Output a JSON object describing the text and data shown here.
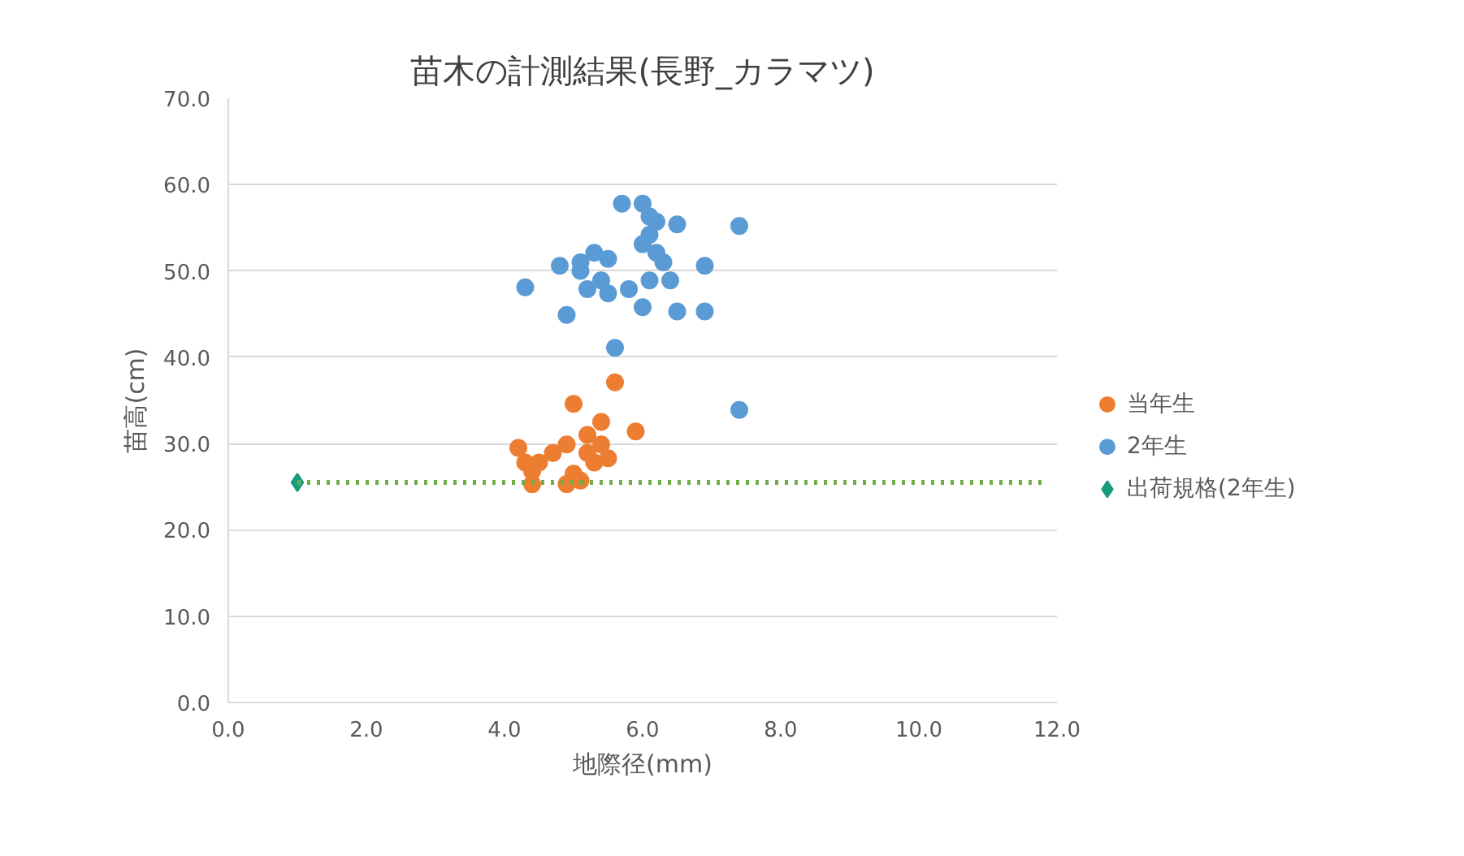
{
  "chart_data": {
    "type": "scatter",
    "title": "苗木の計測結果(長野_カラマツ)",
    "xlabel": "地際径(mm)",
    "ylabel": "苗高(cm)",
    "xlim": [
      0,
      12
    ],
    "ylim": [
      0,
      70
    ],
    "xticks": [
      {
        "value": 0,
        "label": "0.0"
      },
      {
        "value": 2,
        "label": "2.0"
      },
      {
        "value": 4,
        "label": "4.0"
      },
      {
        "value": 6,
        "label": "6.0"
      },
      {
        "value": 8,
        "label": "8.0"
      },
      {
        "value": 10,
        "label": "10.0"
      },
      {
        "value": 12,
        "label": "12.0"
      }
    ],
    "yticks": [
      {
        "value": 0,
        "label": "0.0"
      },
      {
        "value": 10,
        "label": "10.0"
      },
      {
        "value": 20,
        "label": "20.0"
      },
      {
        "value": 30,
        "label": "30.0"
      },
      {
        "value": 40,
        "label": "40.0"
      },
      {
        "value": 50,
        "label": "50.0"
      },
      {
        "value": 60,
        "label": "60.0"
      },
      {
        "value": 70,
        "label": "70.0"
      }
    ],
    "grid": "y",
    "legend": "right",
    "marker": "circle",
    "series": [
      {
        "name": "当年生",
        "color": "#ed7d31",
        "x": [
          5.6,
          5.0,
          5.9,
          4.2,
          5.4,
          4.5,
          4.7,
          4.9,
          5.2,
          5.4,
          5.5,
          5.3,
          5.1,
          4.4,
          4.3,
          5.2,
          4.4,
          4.9,
          5.0
        ],
        "values": [
          37.1,
          34.6,
          31.4,
          29.5,
          32.5,
          27.8,
          28.9,
          29.9,
          31.0,
          29.9,
          28.3,
          27.8,
          25.7,
          26.8,
          27.8,
          28.9,
          25.3,
          25.3,
          26.5
        ]
      },
      {
        "name": "2年生",
        "color": "#5b9bd5",
        "x": [
          5.7,
          6.0,
          6.5,
          7.4,
          4.8,
          6.9,
          4.3,
          4.9,
          6.0,
          6.5,
          6.9,
          5.6,
          7.4,
          5.1,
          5.3,
          5.5,
          6.0,
          6.1,
          6.2,
          6.1,
          6.2,
          6.3,
          5.4,
          5.2,
          5.8,
          6.1,
          6.4,
          5.1,
          5.5
        ],
        "values": [
          57.8,
          57.8,
          55.4,
          55.2,
          50.6,
          50.6,
          48.1,
          44.9,
          45.8,
          45.3,
          45.3,
          41.1,
          33.9,
          51.0,
          52.1,
          51.4,
          53.1,
          54.2,
          55.7,
          56.3,
          52.1,
          51.0,
          48.9,
          47.9,
          47.9,
          48.9,
          48.9,
          50.0,
          47.4
        ]
      },
      {
        "name": "出荷規格(2年生)",
        "color": "#179c7d",
        "marker": "diamond",
        "x": [
          1.0
        ],
        "values": [
          25.5
        ]
      },
      {
        "type": "line",
        "color": "#70ad47",
        "line_style": "dotted",
        "marker": "none",
        "x": [
          1.0,
          11.8
        ],
        "values": [
          25.5,
          25.5
        ]
      }
    ]
  }
}
